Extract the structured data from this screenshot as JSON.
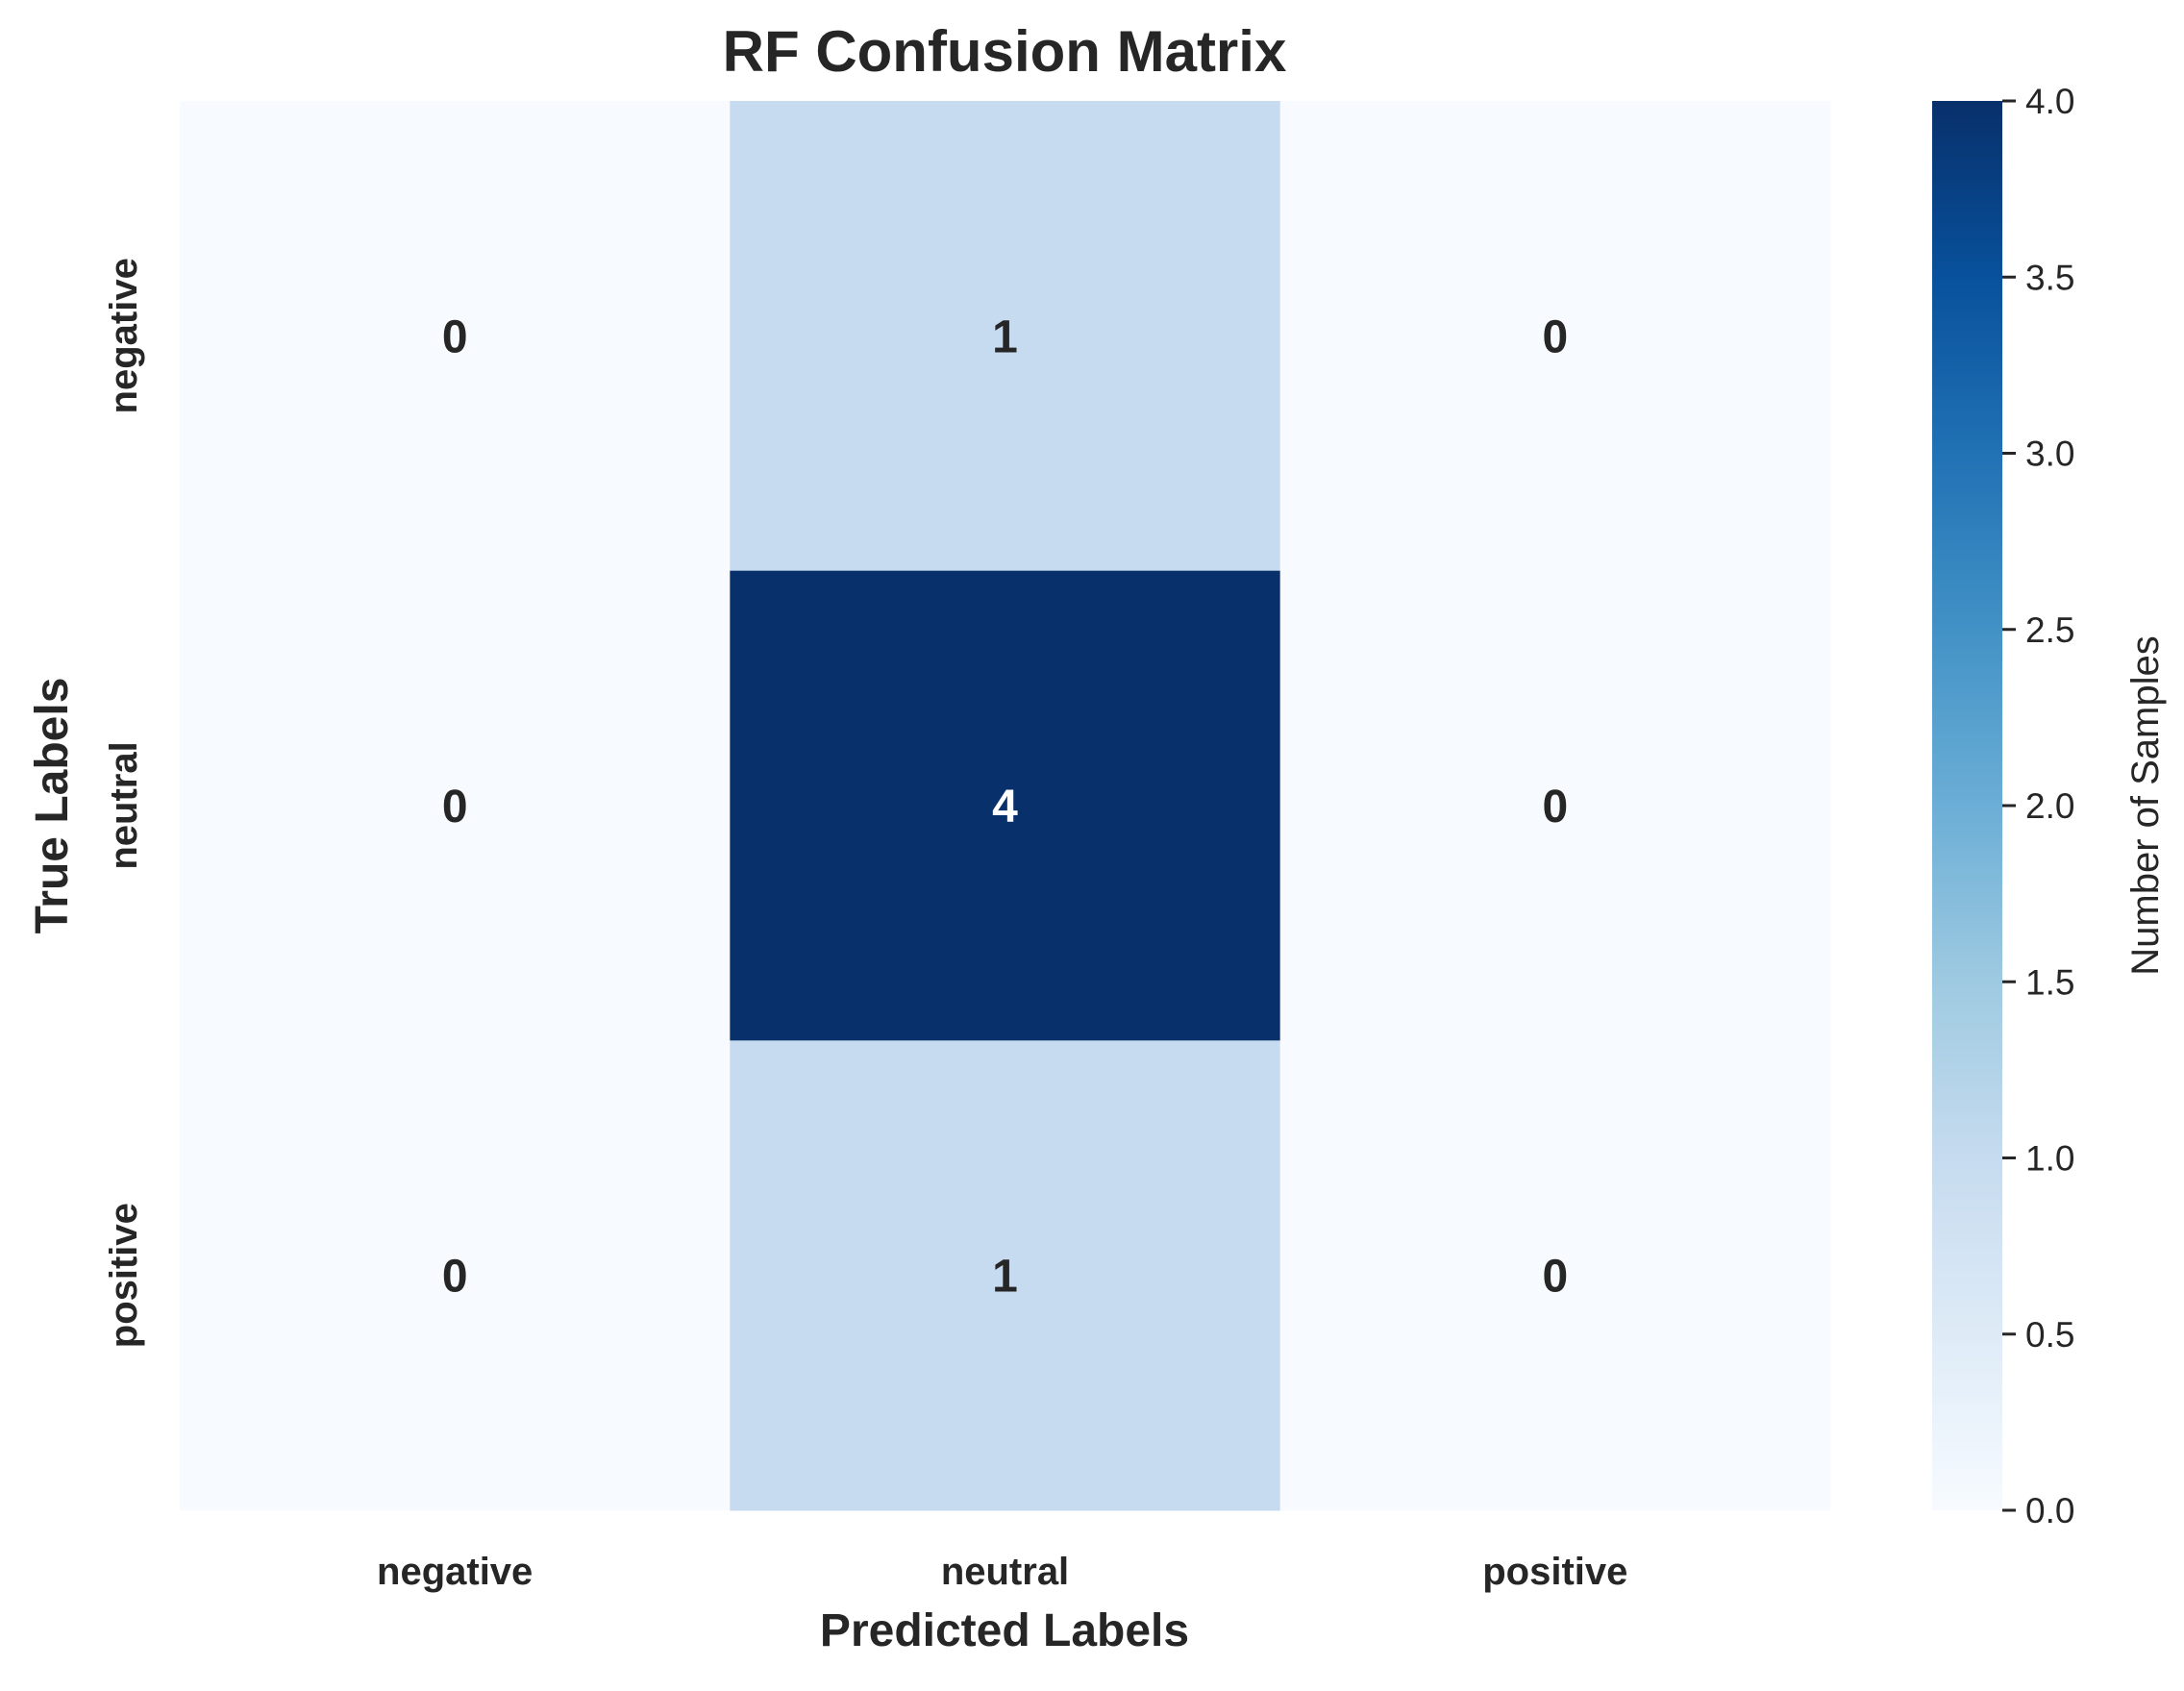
{
  "chart_data": {
    "type": "heatmap",
    "title": "RF Confusion Matrix",
    "xlabel": "Predicted Labels",
    "ylabel": "True Labels",
    "x_categories": [
      "negative",
      "neutral",
      "positive"
    ],
    "y_categories": [
      "negative",
      "neutral",
      "positive"
    ],
    "values": [
      [
        0,
        1,
        0
      ],
      [
        0,
        4,
        0
      ],
      [
        0,
        1,
        0
      ]
    ],
    "colormap": "Blues",
    "colorbar": {
      "label": "Number of Samples",
      "range": [
        0,
        4
      ],
      "ticks": [
        "0.0",
        "0.5",
        "1.0",
        "1.5",
        "2.0",
        "2.5",
        "3.0",
        "3.5",
        "4.0"
      ]
    }
  }
}
